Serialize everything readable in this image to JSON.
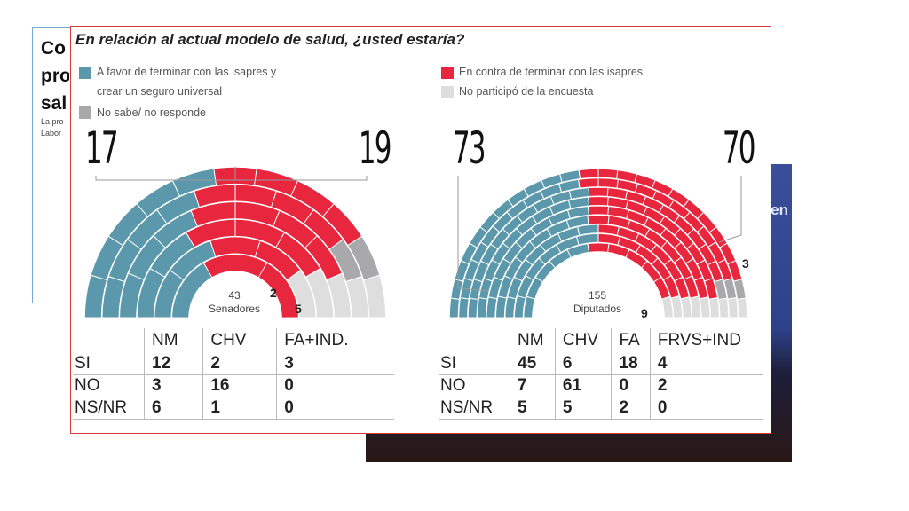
{
  "article": {
    "title": "Co\npro\nsal",
    "snippet": "La pro\nLabor"
  },
  "photo_text": "en",
  "question": "En relación al actual modelo de salud, ¿usted estaría?",
  "legend": {
    "favor": "A favor de terminar con las isapres y",
    "favor_2": "crear un seguro universal",
    "ns": "No sabe/ no responde",
    "contra": "En contra de terminar con las isapres",
    "no_participo": "No participó de la encuesta"
  },
  "colors": {
    "favor": "#5b98ab",
    "contra": "#e8263d",
    "ns": "#a9a9ab",
    "no_participo": "#dedede"
  },
  "chart_data": [
    {
      "type": "parliament",
      "chamber": "Senadores",
      "total": 43,
      "series": [
        {
          "name": "A favor de terminar con las isapres y crear un seguro universal",
          "value": 17
        },
        {
          "name": "En contra de terminar con las isapres",
          "value": 19
        },
        {
          "name": "No sabe/ no responde",
          "value": 2
        },
        {
          "name": "No participó de la encuesta",
          "value": 5
        }
      ],
      "labels": {
        "favor": "17",
        "contra": "19",
        "ns": "2",
        "np": "5",
        "total": "43",
        "chamber": "Senadores"
      },
      "table": {
        "columns": [
          "NM",
          "CHV",
          "FA+IND."
        ],
        "rows": [
          {
            "label": "SI",
            "values": [
              "12",
              "2",
              "3"
            ]
          },
          {
            "label": "NO",
            "values": [
              "3",
              "16",
              "0"
            ]
          },
          {
            "label": "NS/NR",
            "values": [
              "6",
              "1",
              "0"
            ]
          }
        ]
      }
    },
    {
      "type": "parliament",
      "chamber": "Diputados",
      "total": 155,
      "series": [
        {
          "name": "A favor de terminar con las isapres y crear un seguro universal",
          "value": 73
        },
        {
          "name": "En contra de terminar con las isapres",
          "value": 70
        },
        {
          "name": "No sabe/ no responde",
          "value": 3
        },
        {
          "name": "No participó de la encuesta",
          "value": 9
        }
      ],
      "labels": {
        "favor": "73",
        "contra": "70",
        "ns": "3",
        "np": "9",
        "total": "155",
        "chamber": "Diputados"
      },
      "table": {
        "columns": [
          "NM",
          "CHV",
          "FA",
          "FRVS+IND"
        ],
        "rows": [
          {
            "label": "SI",
            "values": [
              "45",
              "6",
              "18",
              "4"
            ]
          },
          {
            "label": "NO",
            "values": [
              "7",
              "61",
              "0",
              "2"
            ]
          },
          {
            "label": "NS/NR",
            "values": [
              "5",
              "5",
              "2",
              "0"
            ]
          }
        ]
      }
    }
  ]
}
